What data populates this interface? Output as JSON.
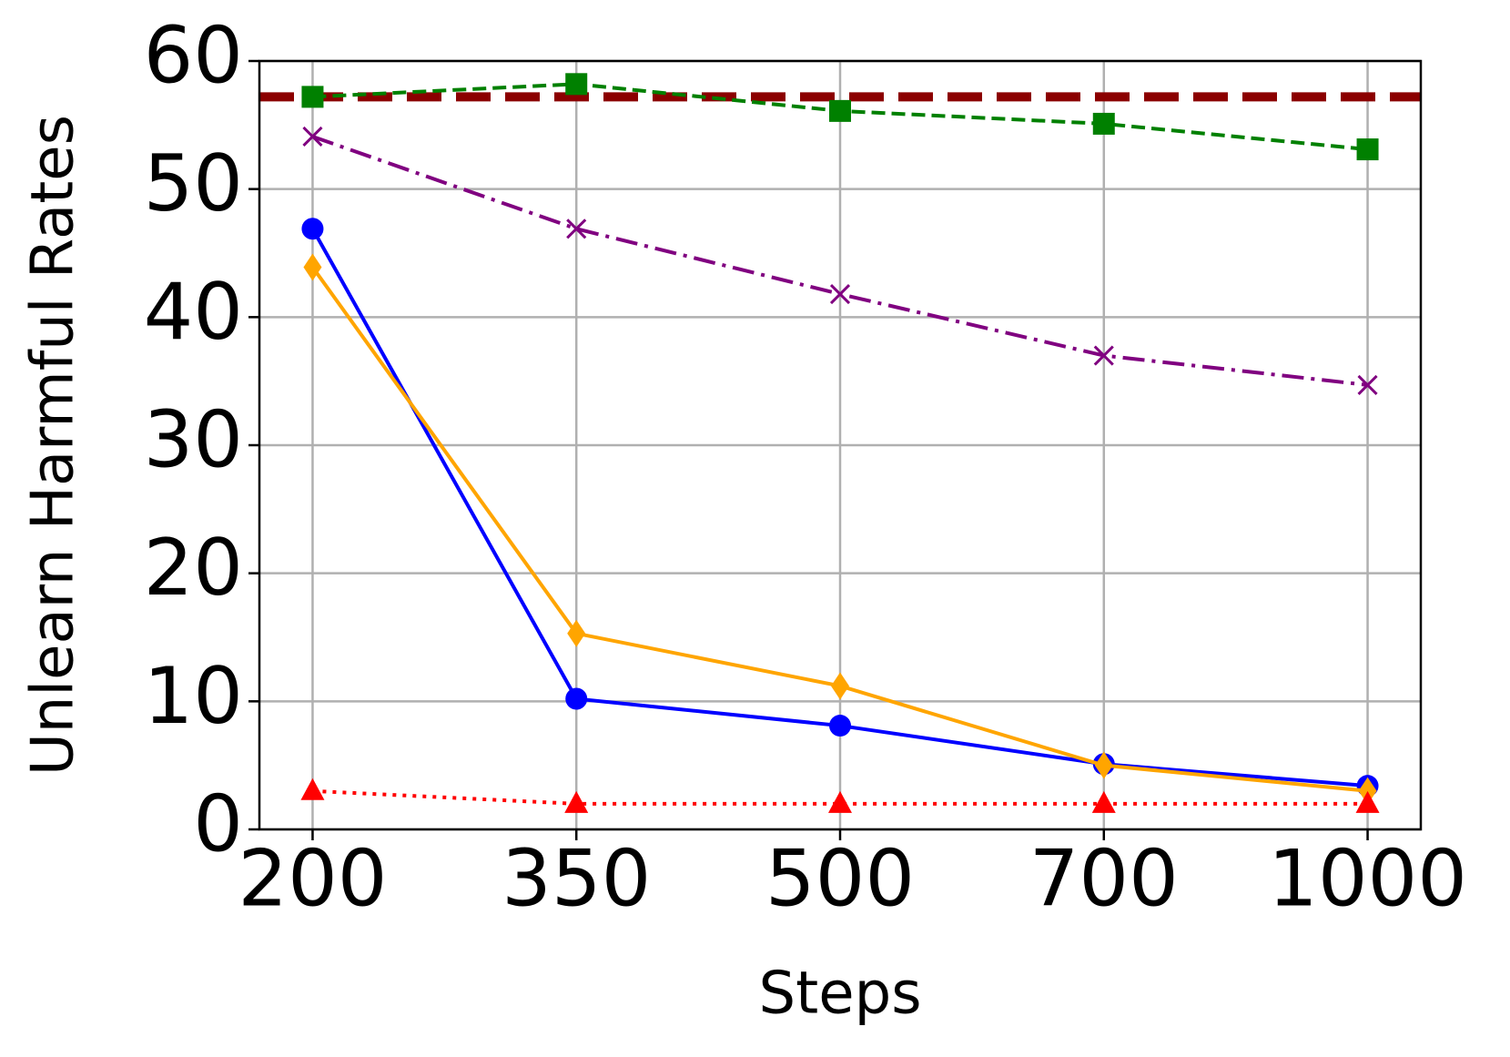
{
  "chart_data": {
    "type": "line",
    "x_label": "Steps",
    "y_label": "Unlearn Harmful Rates",
    "categories": [
      "200",
      "350",
      "500",
      "700",
      "1000"
    ],
    "series": [
      {
        "color": "#008000",
        "marker": "square",
        "dash": "dashed",
        "values": [
          57.2,
          58.2,
          56.1,
          55.1,
          53.1
        ]
      },
      {
        "color": "#800080",
        "marker": "x",
        "dash": "dashdot",
        "values": [
          54.1,
          46.9,
          41.8,
          37.0,
          34.7
        ]
      },
      {
        "color": "#0000ff",
        "marker": "circle",
        "dash": "solid",
        "values": [
          46.9,
          10.2,
          8.1,
          5.1,
          3.4
        ]
      },
      {
        "color": "#ffa500",
        "marker": "diamond",
        "dash": "solid",
        "values": [
          43.9,
          15.3,
          11.2,
          5.0,
          3.0
        ]
      },
      {
        "color": "#ff0000",
        "marker": "triangle",
        "dash": "dotted",
        "values": [
          3.0,
          2.0,
          2.0,
          2.0,
          2.0
        ]
      }
    ],
    "hlines": [
      {
        "value": 57.2,
        "color": "#8b0000"
      }
    ],
    "ylim": [
      0,
      60
    ],
    "yticks": [
      0,
      10,
      20,
      30,
      40,
      50,
      60
    ],
    "grid": true
  }
}
